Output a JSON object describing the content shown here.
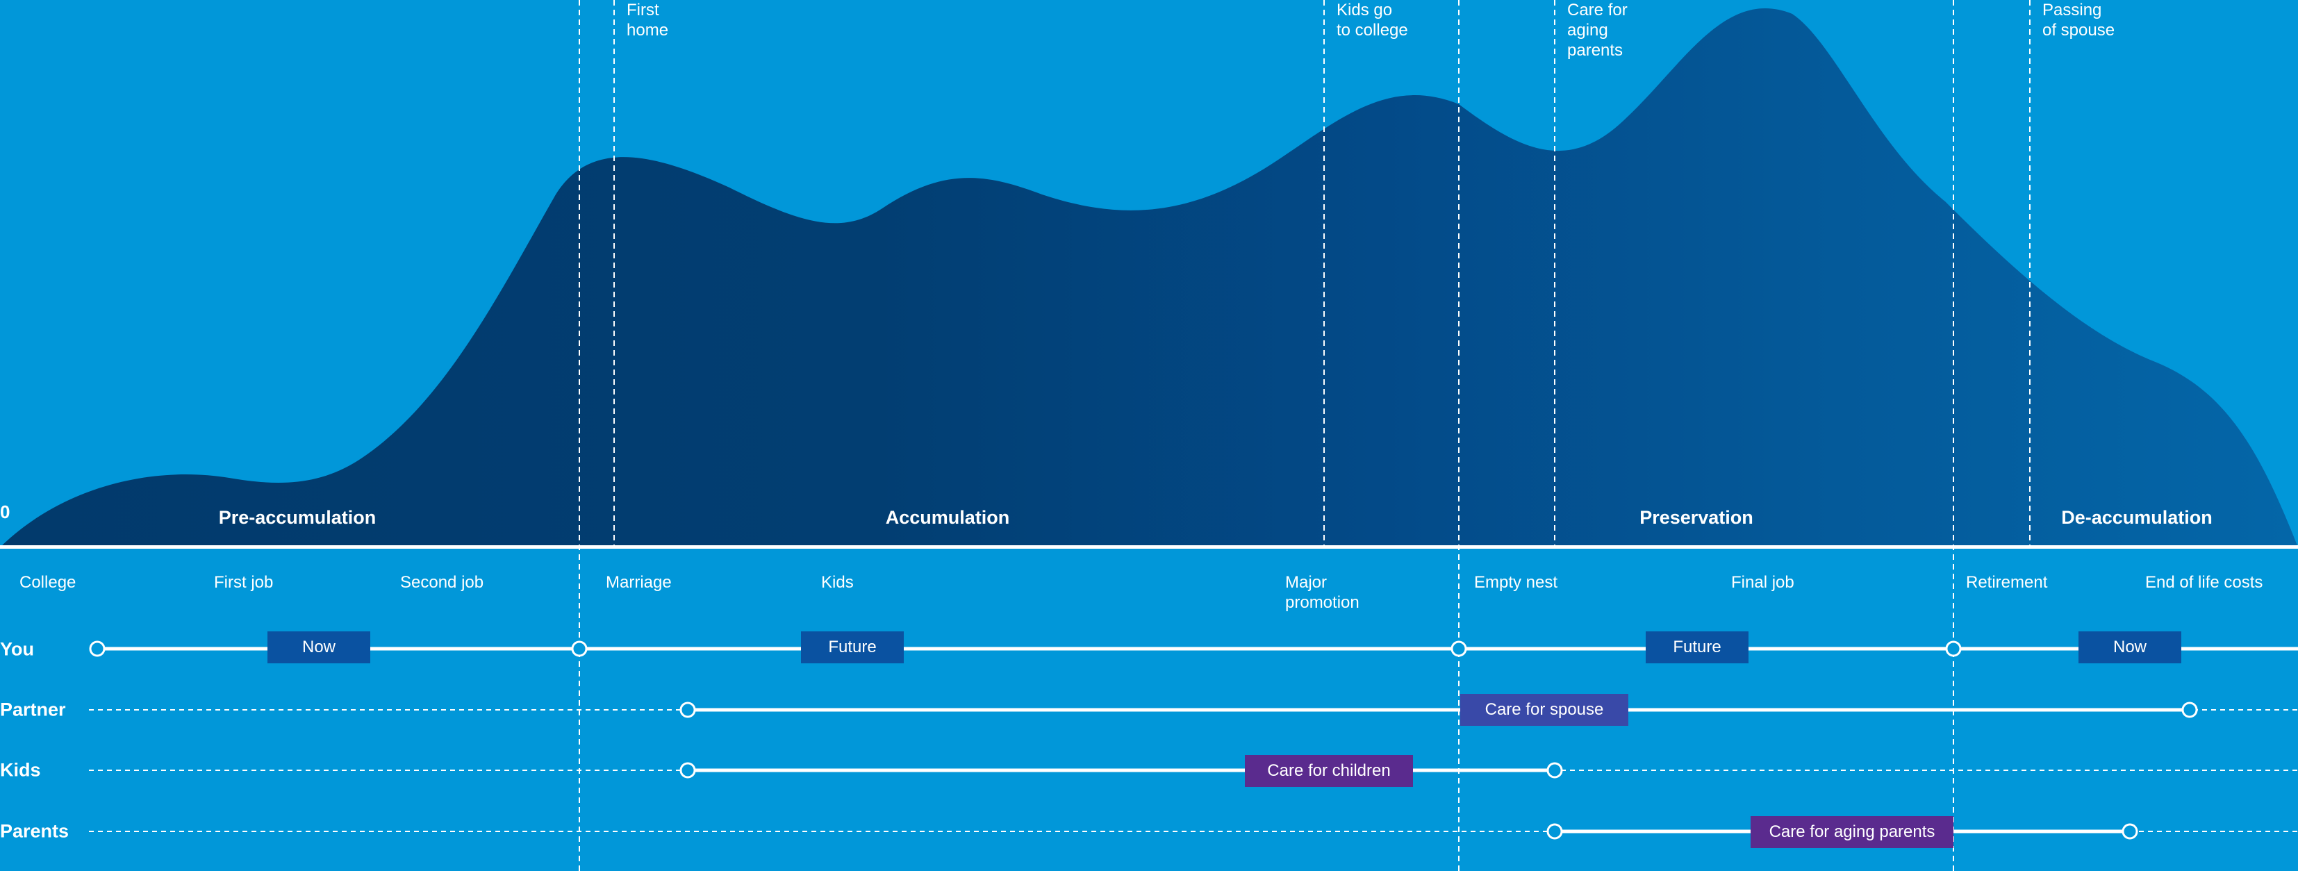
{
  "colors": {
    "background": "#0197D9",
    "area_dark": "#023A6C",
    "area_light": "#0462A2",
    "tag_blue": "#0A52A1",
    "tag_indigo": "#3949A8",
    "tag_purple": "#5A2B8E"
  },
  "axis_zero_label": "0",
  "top_events": [
    {
      "id": "first-home",
      "text": "First\nhome"
    },
    {
      "id": "kids-college",
      "text": "Kids go\nto college"
    },
    {
      "id": "care-aging",
      "text": "Care for\naging\nparents"
    },
    {
      "id": "passing-spouse",
      "text": "Passing\nof spouse"
    }
  ],
  "phases": [
    {
      "id": "pre-accumulation",
      "label": "Pre-accumulation"
    },
    {
      "id": "accumulation",
      "label": "Accumulation"
    },
    {
      "id": "preservation",
      "label": "Preservation"
    },
    {
      "id": "de-accumulation",
      "label": "De-accumulation"
    }
  ],
  "milestones": [
    {
      "id": "college",
      "text": "College"
    },
    {
      "id": "first-job",
      "text": "First job"
    },
    {
      "id": "second-job",
      "text": "Second job"
    },
    {
      "id": "marriage",
      "text": "Marriage"
    },
    {
      "id": "kids",
      "text": "Kids"
    },
    {
      "id": "major-promotion",
      "text": "Major\npromotion"
    },
    {
      "id": "empty-nest",
      "text": "Empty nest"
    },
    {
      "id": "final-job",
      "text": "Final job"
    },
    {
      "id": "retirement",
      "text": "Retirement"
    },
    {
      "id": "end-of-life",
      "text": "End of life costs"
    }
  ],
  "rows": [
    {
      "id": "you",
      "label": "You"
    },
    {
      "id": "partner",
      "label": "Partner"
    },
    {
      "id": "kids",
      "label": "Kids"
    },
    {
      "id": "parents",
      "label": "Parents"
    }
  ],
  "tags": [
    {
      "id": "you-now-1",
      "row": "you",
      "text": "Now",
      "color": "#0A52A1"
    },
    {
      "id": "you-future-1",
      "row": "you",
      "text": "Future",
      "color": "#0A52A1"
    },
    {
      "id": "you-future-2",
      "row": "you",
      "text": "Future",
      "color": "#0A52A1"
    },
    {
      "id": "you-now-2",
      "row": "you",
      "text": "Now",
      "color": "#0A52A1"
    },
    {
      "id": "partner-care-spouse",
      "row": "partner",
      "text": "Care for spouse",
      "color": "#3949A8"
    },
    {
      "id": "kids-care-children",
      "row": "kids",
      "text": "Care for children",
      "color": "#5A2B8E"
    },
    {
      "id": "parents-care-aging",
      "row": "parents",
      "text": "Care for aging parents",
      "color": "#5A2B8E"
    }
  ]
}
